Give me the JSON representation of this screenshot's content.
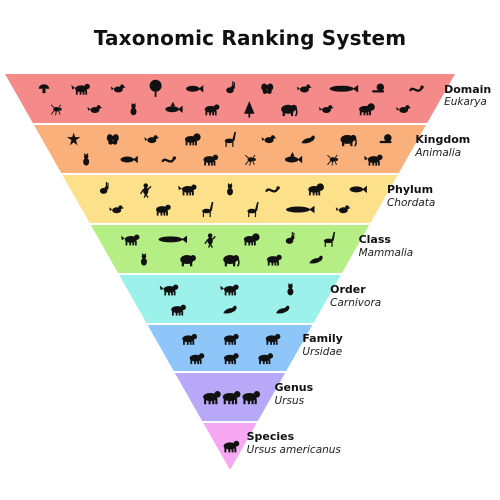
{
  "title": "Taxonomic Ranking System",
  "levels": [
    {
      "rank": "Domain",
      "value": "Eukarya",
      "color": "#f58a8a",
      "animals": [
        "mushroom-icon",
        "dog-icon",
        "bird-icon",
        "tree-icon",
        "fish-icon",
        "rabbit-icon",
        "butterfly-icon",
        "rooster-icon",
        "whale-icon",
        "snail-icon",
        "snake-icon",
        "bug-icon",
        "fly-icon",
        "cat-icon",
        "shark-icon",
        "turtle-icon",
        "pine-tree-icon",
        "elephant-icon",
        "penguin-icon",
        "lion-icon",
        "bird-icon"
      ]
    },
    {
      "rank": "Kingdom",
      "value": "Animalia",
      "color": "#f9b07a",
      "animals": [
        "starfish-icon",
        "butterfly-icon",
        "bird-icon",
        "lion-icon",
        "giraffe-icon",
        "rooster-icon",
        "seal-icon",
        "elephant-icon",
        "snail-icon",
        "cat-icon",
        "fish-icon",
        "snake-icon",
        "bear-icon",
        "ant-icon",
        "shark-icon",
        "spider-icon",
        "dog-icon"
      ]
    },
    {
      "rank": "Phylum",
      "value": "Chordata",
      "color": "#fde08a",
      "animals": [
        "rabbit-icon",
        "monkey-icon",
        "dog-icon",
        "cat-icon",
        "snake-icon",
        "lion-icon",
        "fish-icon",
        "bird-icon",
        "bear-icon",
        "deer-icon",
        "giraffe-icon",
        "whale-icon",
        "rooster-icon"
      ]
    },
    {
      "rank": "Class",
      "value": "Mammalia",
      "color": "#b6ee86",
      "animals": [
        "dog-icon",
        "whale-icon",
        "monkey-icon",
        "lion-icon",
        "rabbit-icon",
        "giraffe-icon",
        "cat-icon",
        "hippo-icon",
        "elephant-icon",
        "bear-icon",
        "otter-icon"
      ]
    },
    {
      "rank": "Order",
      "value": "Carnivora",
      "color": "#9cf1ea",
      "animals": [
        "fox-icon",
        "dog-icon",
        "cat-icon",
        "bear-icon",
        "seal-icon",
        "otter-icon"
      ]
    },
    {
      "rank": "Family",
      "value": "Ursidae",
      "color": "#8fc6f9",
      "animals": [
        "bear-icon",
        "bear-icon",
        "panda-icon",
        "bear-icon",
        "bear-icon",
        "bear-icon"
      ]
    },
    {
      "rank": "Genus",
      "value": "Ursus",
      "color": "#b7a9f7",
      "animals": [
        "bear-icon",
        "bear-icon",
        "bear-icon"
      ]
    },
    {
      "rank": "Species",
      "value": "Ursus americanus",
      "color": "#f6a9f2",
      "animals": [
        "bear-icon"
      ]
    }
  ]
}
